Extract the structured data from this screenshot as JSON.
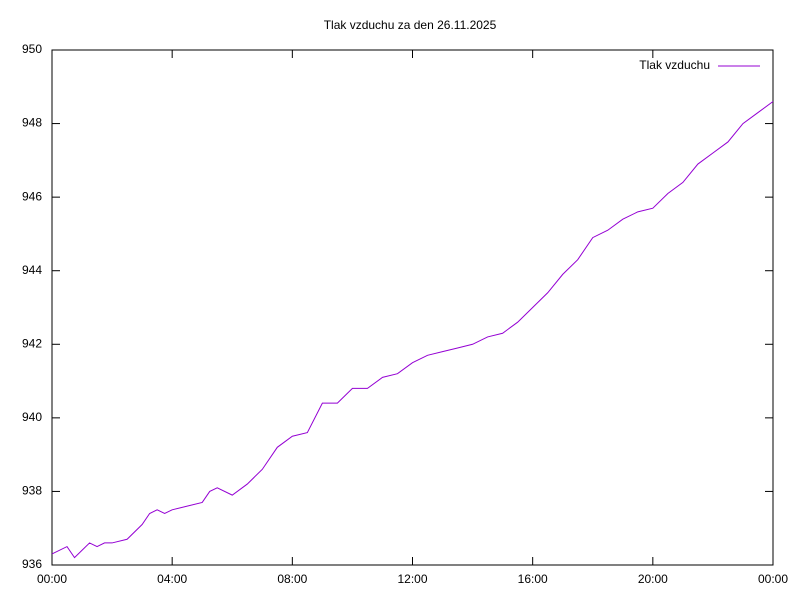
{
  "chart_data": {
    "type": "line",
    "title": "Tlak vzduchu za den 26.11.2025",
    "x": [
      0,
      0.5,
      0.75,
      1,
      1.25,
      1.5,
      1.75,
      2,
      2.5,
      3,
      3.25,
      3.5,
      3.75,
      4,
      4.5,
      5,
      5.25,
      5.5,
      6,
      6.5,
      7,
      7.5,
      8,
      8.5,
      9,
      9.5,
      10,
      10.5,
      11,
      11.5,
      12,
      12.5,
      13,
      13.5,
      14,
      14.5,
      15,
      15.5,
      16,
      16.5,
      17,
      17.5,
      18,
      18.5,
      19,
      19.5,
      20,
      20.5,
      21,
      21.5,
      22,
      22.5,
      23,
      23.5,
      24
    ],
    "series": [
      {
        "name": "Tlak vzduchu",
        "color": "#9400d3",
        "values": [
          936.3,
          936.5,
          936.2,
          936.4,
          936.6,
          936.5,
          936.6,
          936.6,
          936.7,
          937.1,
          937.4,
          937.5,
          937.4,
          937.5,
          937.6,
          937.7,
          938.0,
          938.1,
          937.9,
          938.2,
          938.6,
          939.2,
          939.5,
          939.6,
          940.4,
          940.4,
          940.8,
          940.8,
          941.1,
          941.2,
          941.5,
          941.7,
          941.8,
          941.9,
          942.0,
          942.2,
          942.3,
          942.6,
          943.0,
          943.4,
          943.9,
          944.3,
          944.9,
          945.1,
          945.4,
          945.6,
          945.7,
          946.1,
          946.4,
          946.9,
          947.2,
          947.5,
          948.0,
          948.3,
          948.6
        ]
      }
    ],
    "xlim": [
      0,
      24
    ],
    "xticks": [
      {
        "value": 0,
        "label": "00:00"
      },
      {
        "value": 4,
        "label": "04:00"
      },
      {
        "value": 8,
        "label": "08:00"
      },
      {
        "value": 12,
        "label": "12:00"
      },
      {
        "value": 16,
        "label": "16:00"
      },
      {
        "value": 20,
        "label": "20:00"
      },
      {
        "value": 24,
        "label": "00:00"
      }
    ],
    "ylim": [
      936,
      950
    ],
    "yticks": [
      936,
      938,
      940,
      942,
      944,
      946,
      948,
      950
    ],
    "legend": "top-right"
  }
}
